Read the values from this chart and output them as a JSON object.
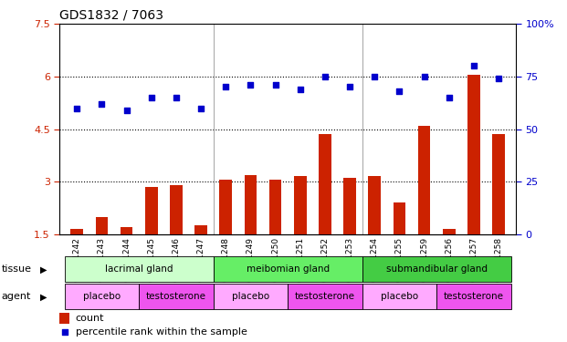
{
  "title": "GDS1832 / 7063",
  "samples": [
    "GSM91242",
    "GSM91243",
    "GSM91244",
    "GSM91245",
    "GSM91246",
    "GSM91247",
    "GSM91248",
    "GSM91249",
    "GSM91250",
    "GSM91251",
    "GSM91252",
    "GSM91253",
    "GSM91254",
    "GSM91255",
    "GSM91259",
    "GSM91256",
    "GSM91257",
    "GSM91258"
  ],
  "count_values": [
    1.65,
    2.0,
    1.7,
    2.85,
    2.9,
    1.75,
    3.05,
    3.2,
    3.05,
    3.15,
    4.35,
    3.1,
    3.15,
    2.4,
    4.6,
    1.65,
    6.05,
    4.35
  ],
  "percentile_values": [
    60,
    62,
    59,
    65,
    65,
    60,
    70,
    71,
    71,
    69,
    75,
    70,
    75,
    68,
    75,
    65,
    80,
    74
  ],
  "ylim_left": [
    1.5,
    7.5
  ],
  "ylim_right": [
    0,
    100
  ],
  "yticks_left": [
    1.5,
    3.0,
    4.5,
    6.0,
    7.5
  ],
  "ytick_labels_left": [
    "1.5",
    "3",
    "4.5",
    "6",
    "7.5"
  ],
  "yticks_right": [
    0,
    25,
    50,
    75,
    100
  ],
  "ytick_labels_right": [
    "0",
    "25",
    "50",
    "75",
    "100%"
  ],
  "bar_color": "#cc2200",
  "dot_color": "#0000cc",
  "tissue_groups": [
    {
      "label": "lacrimal gland",
      "start": 0,
      "end": 5,
      "color": "#ccffcc"
    },
    {
      "label": "meibomian gland",
      "start": 6,
      "end": 11,
      "color": "#66ee66"
    },
    {
      "label": "submandibular gland",
      "start": 12,
      "end": 17,
      "color": "#44cc44"
    }
  ],
  "agent_groups": [
    {
      "label": "placebo",
      "start": 0,
      "end": 2,
      "color": "#ffaaff"
    },
    {
      "label": "testosterone",
      "start": 3,
      "end": 5,
      "color": "#ee55ee"
    },
    {
      "label": "placebo",
      "start": 6,
      "end": 8,
      "color": "#ffaaff"
    },
    {
      "label": "testosterone",
      "start": 9,
      "end": 11,
      "color": "#ee55ee"
    },
    {
      "label": "placebo",
      "start": 12,
      "end": 14,
      "color": "#ffaaff"
    },
    {
      "label": "testosterone",
      "start": 15,
      "end": 17,
      "color": "#ee55ee"
    }
  ],
  "legend_count_color": "#cc2200",
  "legend_dot_color": "#0000cc",
  "background_color": "#ffffff",
  "tick_label_color_left": "#cc2200",
  "tick_label_color_right": "#0000cc",
  "bar_width": 0.5,
  "xtick_bg_color": "#cccccc",
  "gridline_color": "#000000",
  "gridline_yticks": [
    3.0,
    4.5,
    6.0
  ]
}
